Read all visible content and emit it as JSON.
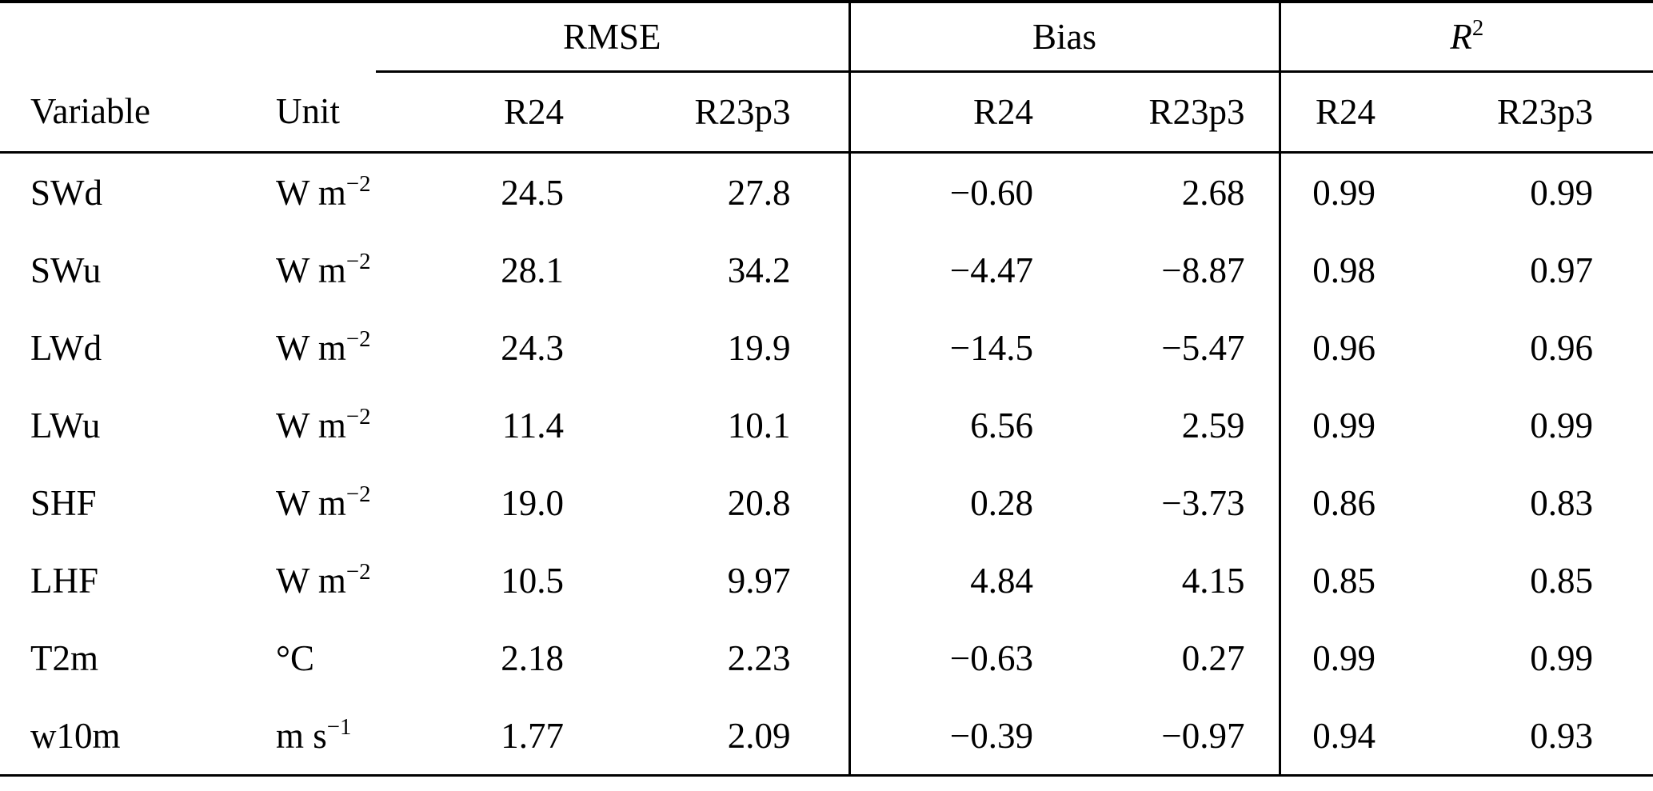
{
  "table": {
    "group_headers": {
      "rmse": "RMSE",
      "bias": "Bias",
      "r2_base": "R",
      "r2_sup": "2"
    },
    "columns": {
      "variable": "Variable",
      "unit": "Unit",
      "r24": "R24",
      "r23p3": "R23p3"
    },
    "rows": [
      {
        "variable": "SWd",
        "unit_base": "W m",
        "unit_sup": "−2",
        "rmse_r24": "24.5",
        "rmse_r23p3": "27.8",
        "bias_r24": "−0.60",
        "bias_r23p3": "2.68",
        "r2_r24": "0.99",
        "r2_r23p3": "0.99"
      },
      {
        "variable": "SWu",
        "unit_base": "W m",
        "unit_sup": "−2",
        "rmse_r24": "28.1",
        "rmse_r23p3": "34.2",
        "bias_r24": "−4.47",
        "bias_r23p3": "−8.87",
        "r2_r24": "0.98",
        "r2_r23p3": "0.97"
      },
      {
        "variable": "LWd",
        "unit_base": "W m",
        "unit_sup": "−2",
        "rmse_r24": "24.3",
        "rmse_r23p3": "19.9",
        "bias_r24": "−14.5",
        "bias_r23p3": "−5.47",
        "r2_r24": "0.96",
        "r2_r23p3": "0.96"
      },
      {
        "variable": "LWu",
        "unit_base": "W m",
        "unit_sup": "−2",
        "rmse_r24": "11.4",
        "rmse_r23p3": "10.1",
        "bias_r24": "6.56",
        "bias_r23p3": "2.59",
        "r2_r24": "0.99",
        "r2_r23p3": "0.99"
      },
      {
        "variable": "SHF",
        "unit_base": "W m",
        "unit_sup": "−2",
        "rmse_r24": "19.0",
        "rmse_r23p3": "20.8",
        "bias_r24": "0.28",
        "bias_r23p3": "−3.73",
        "r2_r24": "0.86",
        "r2_r23p3": "0.83"
      },
      {
        "variable": "LHF",
        "unit_base": "W m",
        "unit_sup": "−2",
        "rmse_r24": "10.5",
        "rmse_r23p3": "9.97",
        "bias_r24": "4.84",
        "bias_r23p3": "4.15",
        "r2_r24": "0.85",
        "r2_r23p3": "0.85"
      },
      {
        "variable": "T2m",
        "unit_base": "°C",
        "unit_sup": "",
        "rmse_r24": "2.18",
        "rmse_r23p3": "2.23",
        "bias_r24": "−0.63",
        "bias_r23p3": "0.27",
        "r2_r24": "0.99",
        "r2_r23p3": "0.99"
      },
      {
        "variable": "w10m",
        "unit_base": "m s",
        "unit_sup": "−1",
        "rmse_r24": "1.77",
        "rmse_r23p3": "2.09",
        "bias_r24": "−0.39",
        "bias_r23p3": "−0.97",
        "r2_r24": "0.94",
        "r2_r23p3": "0.93"
      }
    ]
  }
}
